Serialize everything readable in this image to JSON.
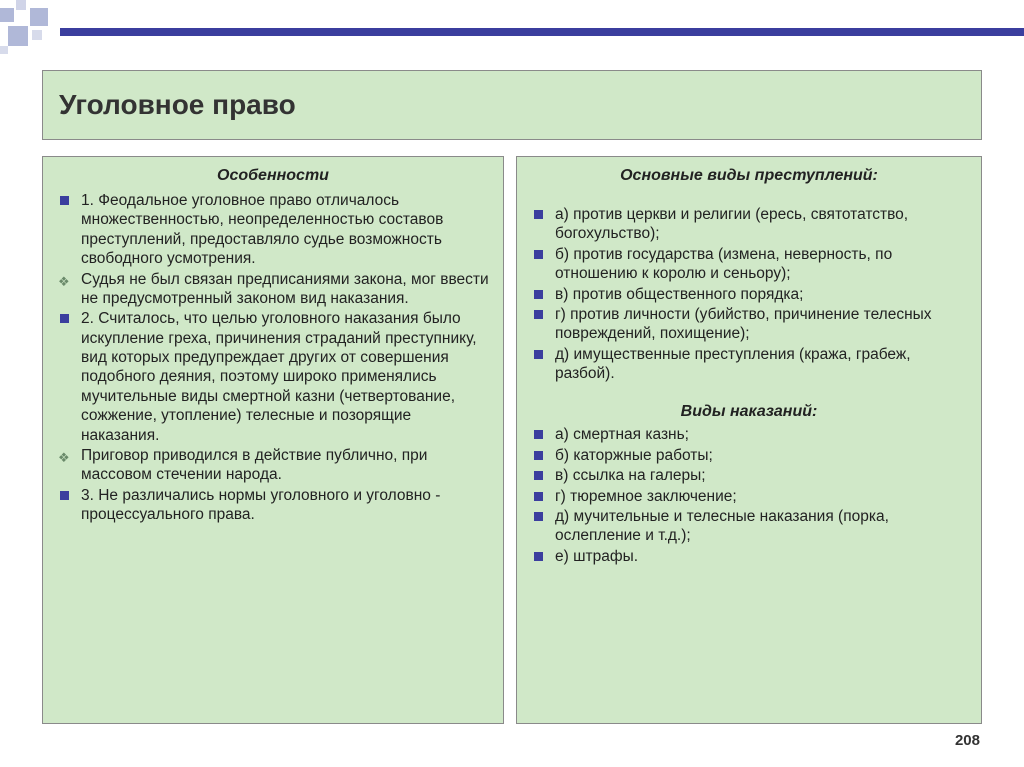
{
  "colors": {
    "accent": "#3b3e9e",
    "panel_bg": "#d0e8c8",
    "panel_border": "#8a8a8a",
    "deco_square": "#b0b8d8",
    "text": "#222222"
  },
  "title": "Уголовное право",
  "left": {
    "heading": "Особенности",
    "items": [
      {
        "marker": "sq",
        "text": "1. Феодальное уголовное право отличалось множественностью, неопределенностью составов преступлений, предоставляло судье возможность свободного усмотрения."
      },
      {
        "marker": "dm",
        "text": "Судья не был связан предписаниями закона, мог ввести не предусмотренный законом вид наказания."
      },
      {
        "marker": "sq",
        "text": "2. Считалось, что целью уголовного наказания было искупление греха, причинения страданий преступнику, вид которых предупреждает других от совершения подобного деяния, поэтому широко применялись мучительные виды смертной казни (четвертование, сожжение, утопление) телесные и позорящие наказания."
      },
      {
        "marker": "dm",
        "text": "Приговор приводился в действие публично, при массовом стечении народа."
      },
      {
        "marker": "sq",
        "text": "3. Не различались нормы уголовного и уголовно - процессуального права."
      }
    ]
  },
  "right": {
    "heading1": "Основные виды преступлений:",
    "list1": [
      "а) против церкви и религии (ересь, святотатство, богохульство);",
      "б) против государства (измена, неверность, по отношению к королю и сеньору);",
      "в) против общественного порядка;",
      "г) против личности (убийство, причинение телесных повреждений, похищение);",
      "д) имущественные преступления (кража, грабеж, разбой)."
    ],
    "heading2": "Виды наказаний:",
    "list2": [
      "а) смертная казнь;",
      "б) каторжные работы;",
      "в) ссылка на галеры;",
      "г) тюремное заключение;",
      "д) мучительные и телесные наказания (порка, ослепление и т.д.);",
      "е) штрафы."
    ]
  },
  "page_number": "208"
}
